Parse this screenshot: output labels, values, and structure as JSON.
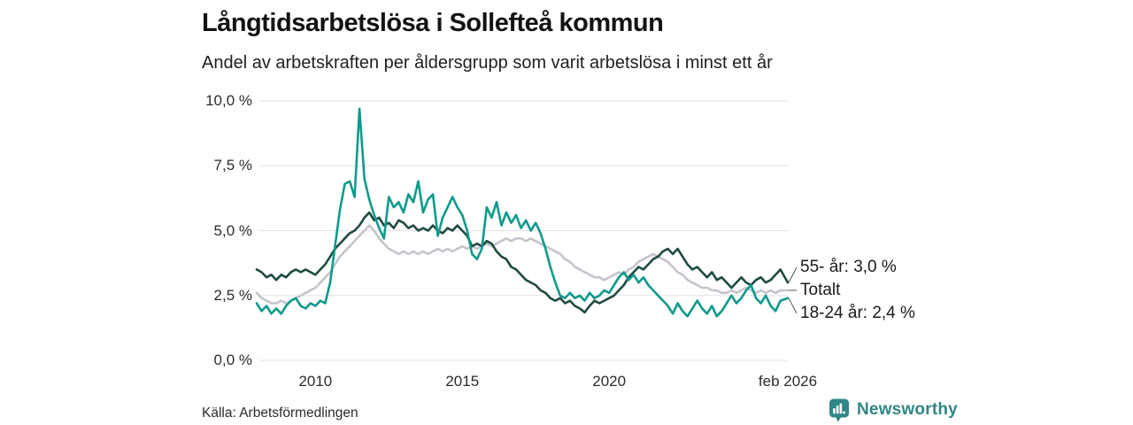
{
  "header": {
    "title": "Långtidsarbetslösa i Sollefteå kommun",
    "subtitle": "Andel av arbetskraften per åldersgrupp som varit arbetslösa i minst ett år"
  },
  "chart_data": {
    "type": "line",
    "unit": "%",
    "grid": "horizontal",
    "legend_position": "end-of-line labels (right)",
    "ylim": [
      0,
      10
    ],
    "x_start": 2008.0,
    "x_step_years": 0.16667,
    "x_end": 2026.083,
    "y_ticks": [
      {
        "value": 0.0,
        "label": "0,0 %"
      },
      {
        "value": 2.5,
        "label": "2,5 %"
      },
      {
        "value": 5.0,
        "label": "5,0 %"
      },
      {
        "value": 7.5,
        "label": "7,5 %"
      },
      {
        "value": 10.0,
        "label": "10,0 %"
      }
    ],
    "x_ticks": [
      {
        "year": 2010,
        "label": "2010"
      },
      {
        "year": 2015,
        "label": "2015"
      },
      {
        "year": 2020,
        "label": "2020"
      },
      {
        "year": 2026.083,
        "label": "feb 2026"
      }
    ],
    "series": [
      {
        "name": "Totalt",
        "end_label": "Totalt",
        "end_value": 2.7,
        "color": "#c5c4cd",
        "values": [
          2.6,
          2.4,
          2.3,
          2.2,
          2.2,
          2.3,
          2.2,
          2.3,
          2.4,
          2.5,
          2.6,
          2.7,
          2.8,
          3.0,
          3.2,
          3.4,
          3.7,
          4.0,
          4.2,
          4.4,
          4.6,
          4.8,
          5.0,
          5.2,
          5.0,
          4.7,
          4.5,
          4.3,
          4.2,
          4.1,
          4.2,
          4.1,
          4.2,
          4.1,
          4.2,
          4.1,
          4.2,
          4.3,
          4.2,
          4.3,
          4.2,
          4.3,
          4.4,
          4.3,
          4.4,
          4.3,
          4.4,
          4.5,
          4.4,
          4.5,
          4.6,
          4.7,
          4.6,
          4.7,
          4.7,
          4.6,
          4.7,
          4.6,
          4.5,
          4.4,
          4.3,
          4.2,
          4.1,
          3.9,
          3.8,
          3.6,
          3.5,
          3.4,
          3.3,
          3.2,
          3.2,
          3.1,
          3.2,
          3.3,
          3.4,
          3.3,
          3.5,
          3.6,
          3.8,
          3.9,
          4.0,
          4.1,
          4.0,
          3.9,
          3.8,
          3.6,
          3.4,
          3.3,
          3.1,
          3.0,
          2.9,
          2.8,
          2.8,
          2.7,
          2.7,
          2.6,
          2.6,
          2.7,
          2.6,
          2.7,
          2.8,
          2.7,
          2.6,
          2.7,
          2.6,
          2.7,
          2.6,
          2.7,
          2.7
        ]
      },
      {
        "name": "55- år",
        "end_label": "55- år: 3,0 %",
        "end_value": 3.0,
        "color": "#1e4a42",
        "values": [
          3.5,
          3.4,
          3.2,
          3.3,
          3.1,
          3.3,
          3.2,
          3.4,
          3.5,
          3.4,
          3.5,
          3.4,
          3.3,
          3.5,
          3.7,
          4.0,
          4.3,
          4.5,
          4.7,
          4.9,
          5.0,
          5.2,
          5.5,
          5.7,
          5.4,
          5.5,
          5.2,
          5.3,
          5.1,
          5.4,
          5.3,
          5.1,
          5.2,
          5.0,
          5.1,
          5.0,
          5.2,
          5.0,
          4.9,
          5.1,
          5.0,
          5.2,
          5.0,
          4.8,
          4.4,
          4.5,
          4.4,
          4.6,
          4.5,
          4.2,
          4.0,
          3.9,
          3.6,
          3.5,
          3.3,
          3.1,
          3.0,
          2.9,
          2.7,
          2.6,
          2.4,
          2.3,
          2.4,
          2.2,
          2.3,
          2.1,
          2.0,
          1.85,
          2.1,
          2.3,
          2.2,
          2.3,
          2.4,
          2.5,
          2.7,
          2.9,
          3.2,
          3.4,
          3.6,
          3.5,
          3.7,
          3.9,
          4.0,
          4.2,
          4.3,
          4.1,
          4.3,
          4.0,
          3.7,
          3.5,
          3.6,
          3.4,
          3.2,
          3.4,
          3.1,
          3.2,
          3.0,
          2.8,
          3.0,
          3.2,
          3.0,
          2.9,
          3.1,
          3.2,
          3.0,
          3.1,
          3.3,
          3.5,
          3.0
        ]
      },
      {
        "name": "18-24 år",
        "end_label": "18-24 år: 2,4 %",
        "end_value": 2.4,
        "color": "#0f9a8b",
        "values": [
          2.2,
          1.9,
          2.1,
          1.8,
          2.0,
          1.8,
          2.1,
          2.3,
          2.4,
          2.1,
          2.0,
          2.2,
          2.1,
          2.3,
          2.2,
          3.0,
          4.4,
          5.8,
          6.8,
          6.9,
          6.3,
          9.7,
          7.0,
          6.2,
          5.6,
          5.1,
          4.7,
          6.3,
          5.9,
          6.1,
          5.7,
          6.4,
          6.1,
          6.9,
          5.7,
          6.2,
          6.4,
          4.8,
          5.5,
          5.9,
          6.3,
          5.9,
          5.6,
          5.0,
          4.1,
          3.9,
          4.3,
          5.9,
          5.5,
          6.1,
          5.2,
          5.7,
          5.3,
          5.6,
          5.1,
          5.4,
          5.0,
          5.3,
          4.9,
          4.3,
          3.6,
          3.0,
          2.5,
          2.4,
          2.6,
          2.4,
          2.5,
          2.3,
          2.6,
          2.4,
          2.5,
          2.7,
          2.6,
          2.9,
          3.2,
          3.4,
          3.1,
          3.3,
          3.0,
          3.2,
          2.9,
          2.7,
          2.5,
          2.3,
          2.1,
          1.8,
          2.2,
          1.9,
          1.7,
          2.0,
          2.3,
          2.0,
          1.8,
          2.1,
          1.7,
          1.9,
          2.2,
          2.5,
          2.2,
          2.4,
          2.7,
          2.9,
          2.4,
          2.2,
          2.5,
          2.1,
          1.9,
          2.3,
          2.4
        ]
      }
    ]
  },
  "footer": {
    "source": "Källa: Arbetsförmedlingen",
    "brand": "Newsworthy"
  },
  "colors": {
    "teal_series": "#0f9a8b",
    "dark_green_series": "#1e4a42",
    "gray_series": "#c5c4cd",
    "grid": "#e4e4e7",
    "connector": "#555555",
    "brand_teal": "#2e8786",
    "text": "#1a1a1a"
  }
}
